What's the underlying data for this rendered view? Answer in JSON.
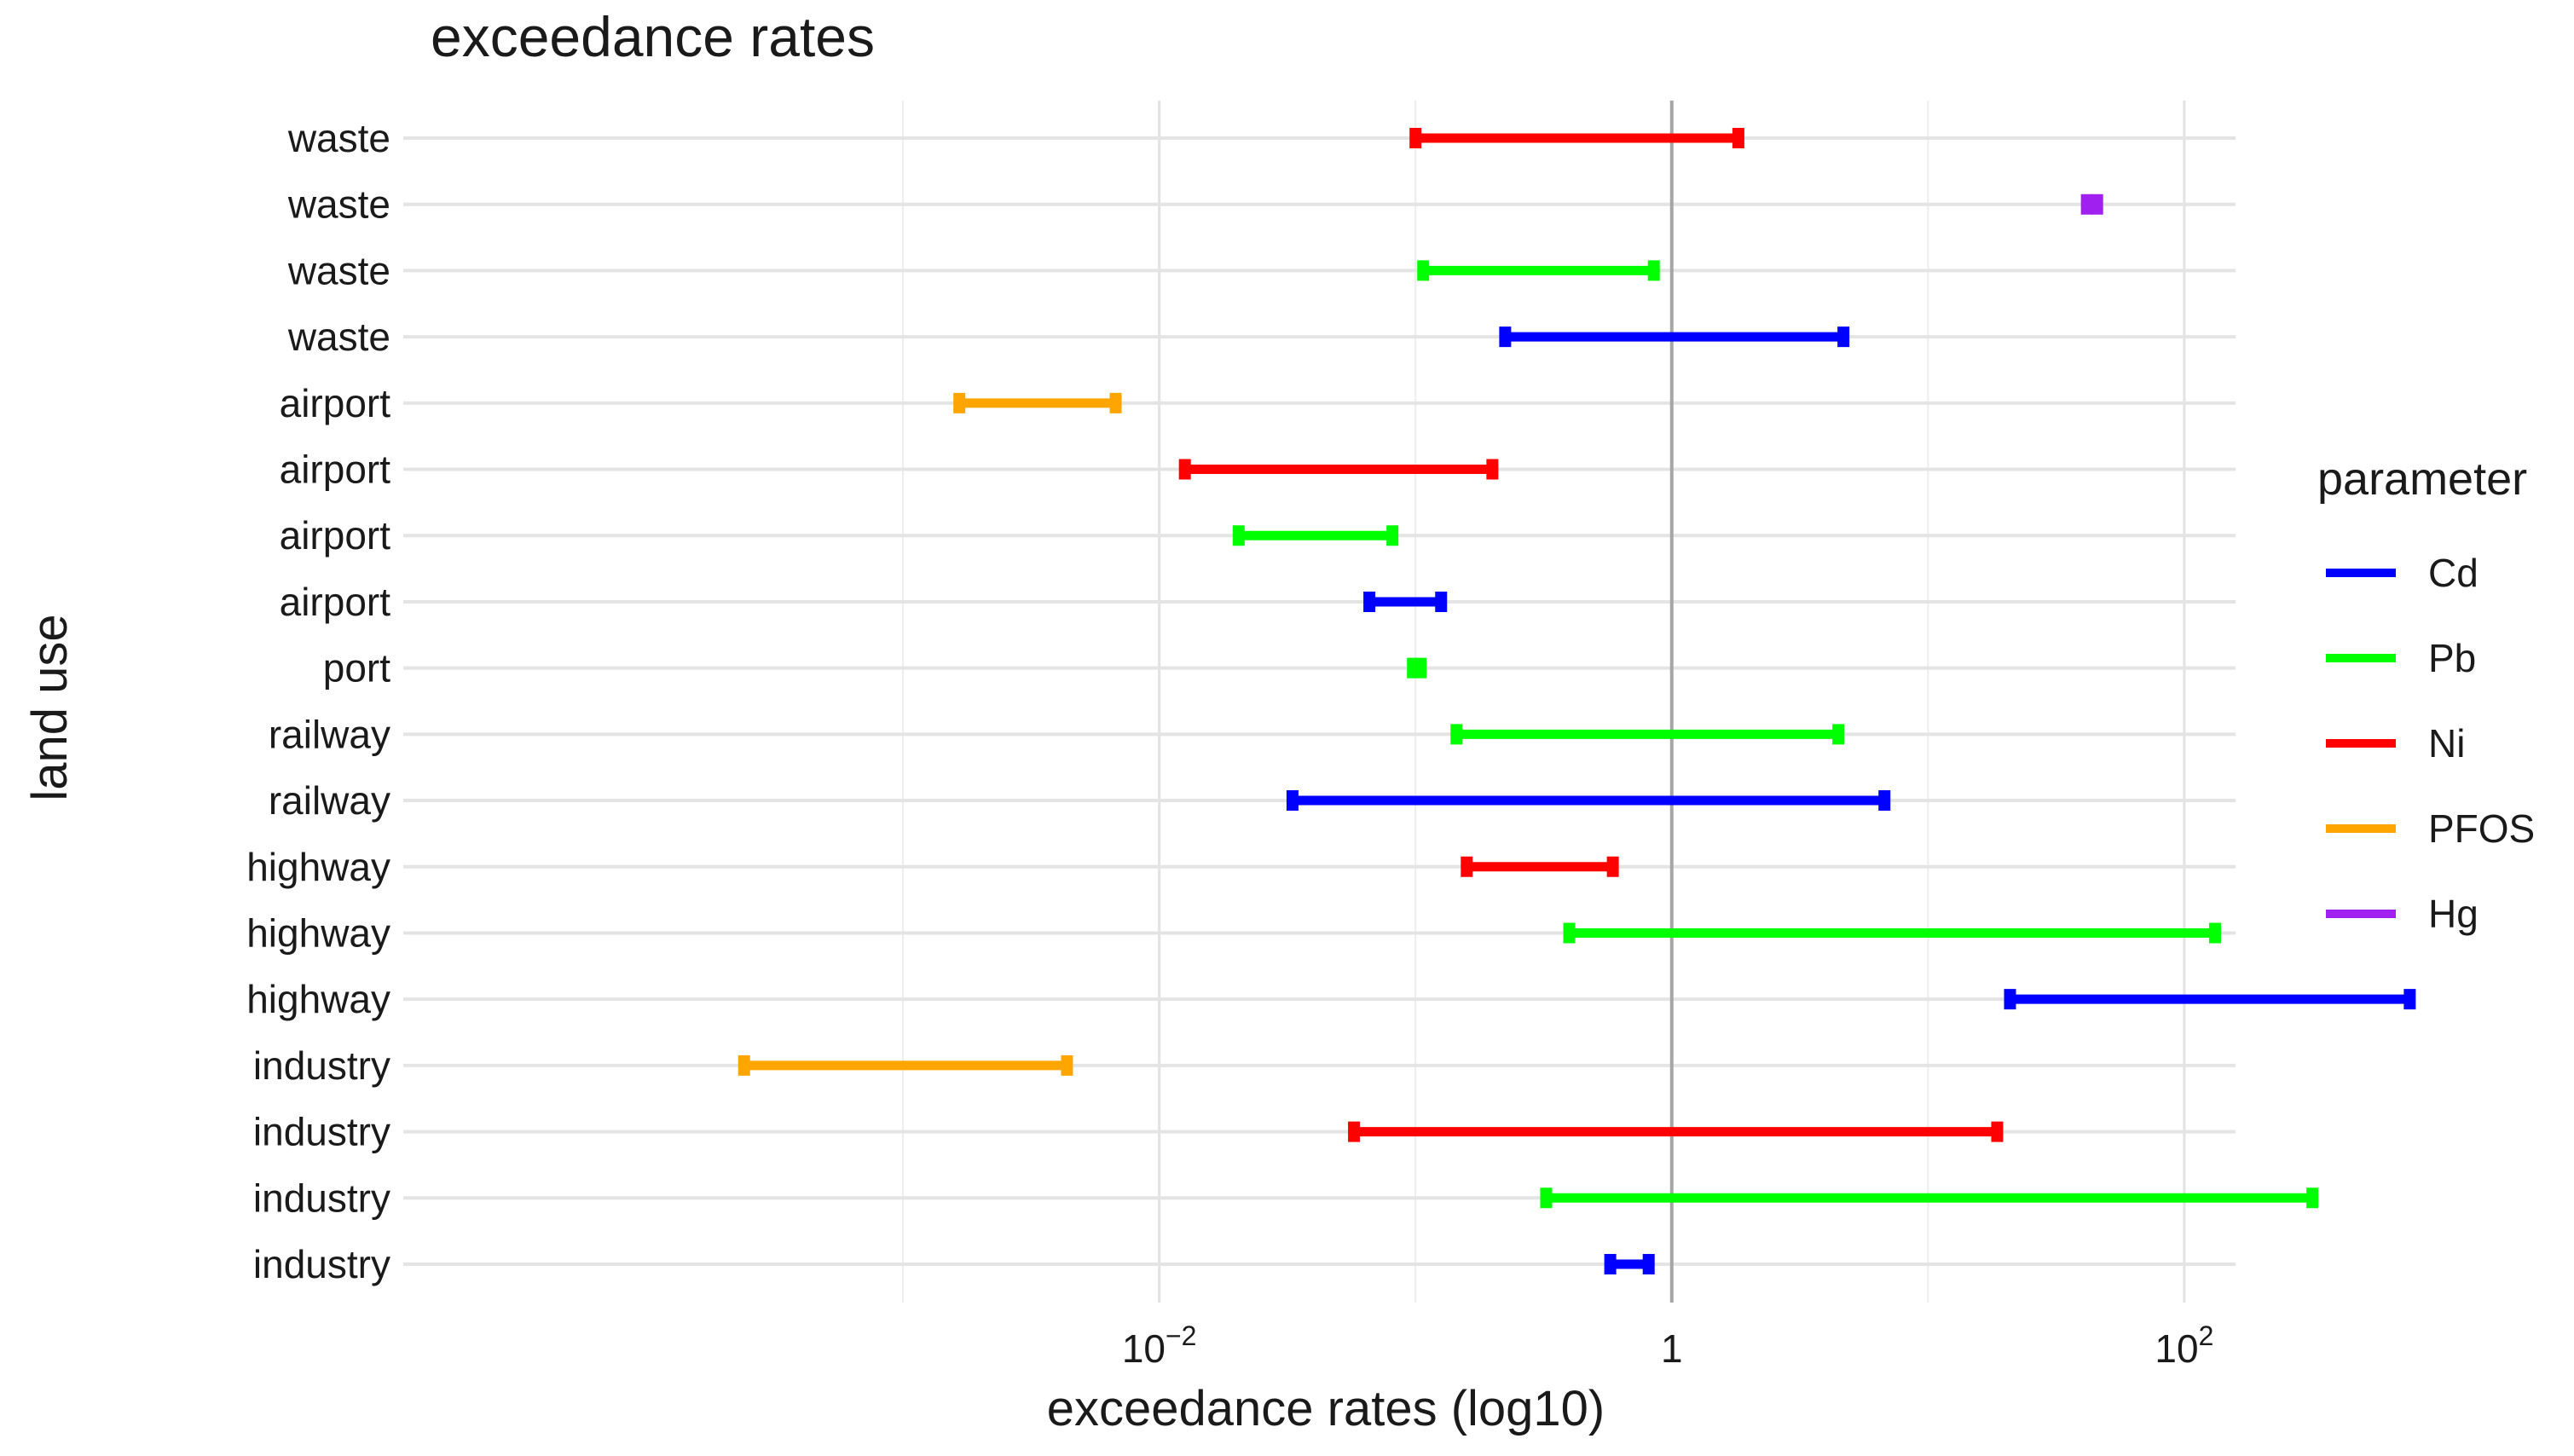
{
  "chart_data": {
    "type": "range-bar",
    "title": "exceedance  rates",
    "xlabel": "exceedance rates (log10)",
    "ylabel": "land use",
    "x_scale": "log10",
    "xlim_log10": [
      -4.95,
      2.2
    ],
    "x_ticks": [
      {
        "log10": -2,
        "base": "10",
        "exp": "−2"
      },
      {
        "log10": 0,
        "label": "1"
      },
      {
        "log10": 2,
        "base": "10",
        "exp": "2"
      }
    ],
    "reference_line_log10": 0,
    "legend": {
      "title": "parameter",
      "entries": [
        {
          "name": "Cd",
          "color": "#0000ff"
        },
        {
          "name": "Pb",
          "color": "#00ff00"
        },
        {
          "name": "Ni",
          "color": "#ff0000"
        },
        {
          "name": "PFOS",
          "color": "#ffa500"
        },
        {
          "name": "Hg",
          "color": "#a020f0"
        }
      ]
    },
    "rows": [
      {
        "land_use": "waste",
        "parameter": "Ni",
        "min_log10": -1.0,
        "max_log10": 0.26
      },
      {
        "land_use": "waste",
        "parameter": "Hg",
        "min_log10": 1.62,
        "max_log10": 1.66
      },
      {
        "land_use": "waste",
        "parameter": "Pb",
        "min_log10": -0.97,
        "max_log10": -0.07
      },
      {
        "land_use": "waste",
        "parameter": "Cd",
        "min_log10": -0.65,
        "max_log10": 0.67
      },
      {
        "land_use": "airport",
        "parameter": "PFOS",
        "min_log10": -2.78,
        "max_log10": -2.17
      },
      {
        "land_use": "airport",
        "parameter": "Ni",
        "min_log10": -1.9,
        "max_log10": -0.7
      },
      {
        "land_use": "airport",
        "parameter": "Pb",
        "min_log10": -1.69,
        "max_log10": -1.09
      },
      {
        "land_use": "airport",
        "parameter": "Cd",
        "min_log10": -1.18,
        "max_log10": -0.9
      },
      {
        "land_use": "port",
        "parameter": "Pb",
        "min_log10": -1.01,
        "max_log10": -0.98
      },
      {
        "land_use": "railway",
        "parameter": "Pb",
        "min_log10": -0.84,
        "max_log10": 0.65
      },
      {
        "land_use": "railway",
        "parameter": "Cd",
        "min_log10": -1.48,
        "max_log10": 0.83
      },
      {
        "land_use": "highway",
        "parameter": "Ni",
        "min_log10": -0.8,
        "max_log10": -0.23
      },
      {
        "land_use": "highway",
        "parameter": "Pb",
        "min_log10": -0.4,
        "max_log10": 2.12
      },
      {
        "land_use": "highway",
        "parameter": "Cd",
        "min_log10": 1.32,
        "max_log10": 2.88
      },
      {
        "land_use": "industry",
        "parameter": "PFOS",
        "min_log10": -3.62,
        "max_log10": -2.36
      },
      {
        "land_use": "industry",
        "parameter": "Ni",
        "min_log10": -1.24,
        "max_log10": 1.27
      },
      {
        "land_use": "industry",
        "parameter": "Pb",
        "min_log10": -0.49,
        "max_log10": 2.5
      },
      {
        "land_use": "industry",
        "parameter": "Cd",
        "min_log10": -0.24,
        "max_log10": -0.09
      }
    ]
  }
}
